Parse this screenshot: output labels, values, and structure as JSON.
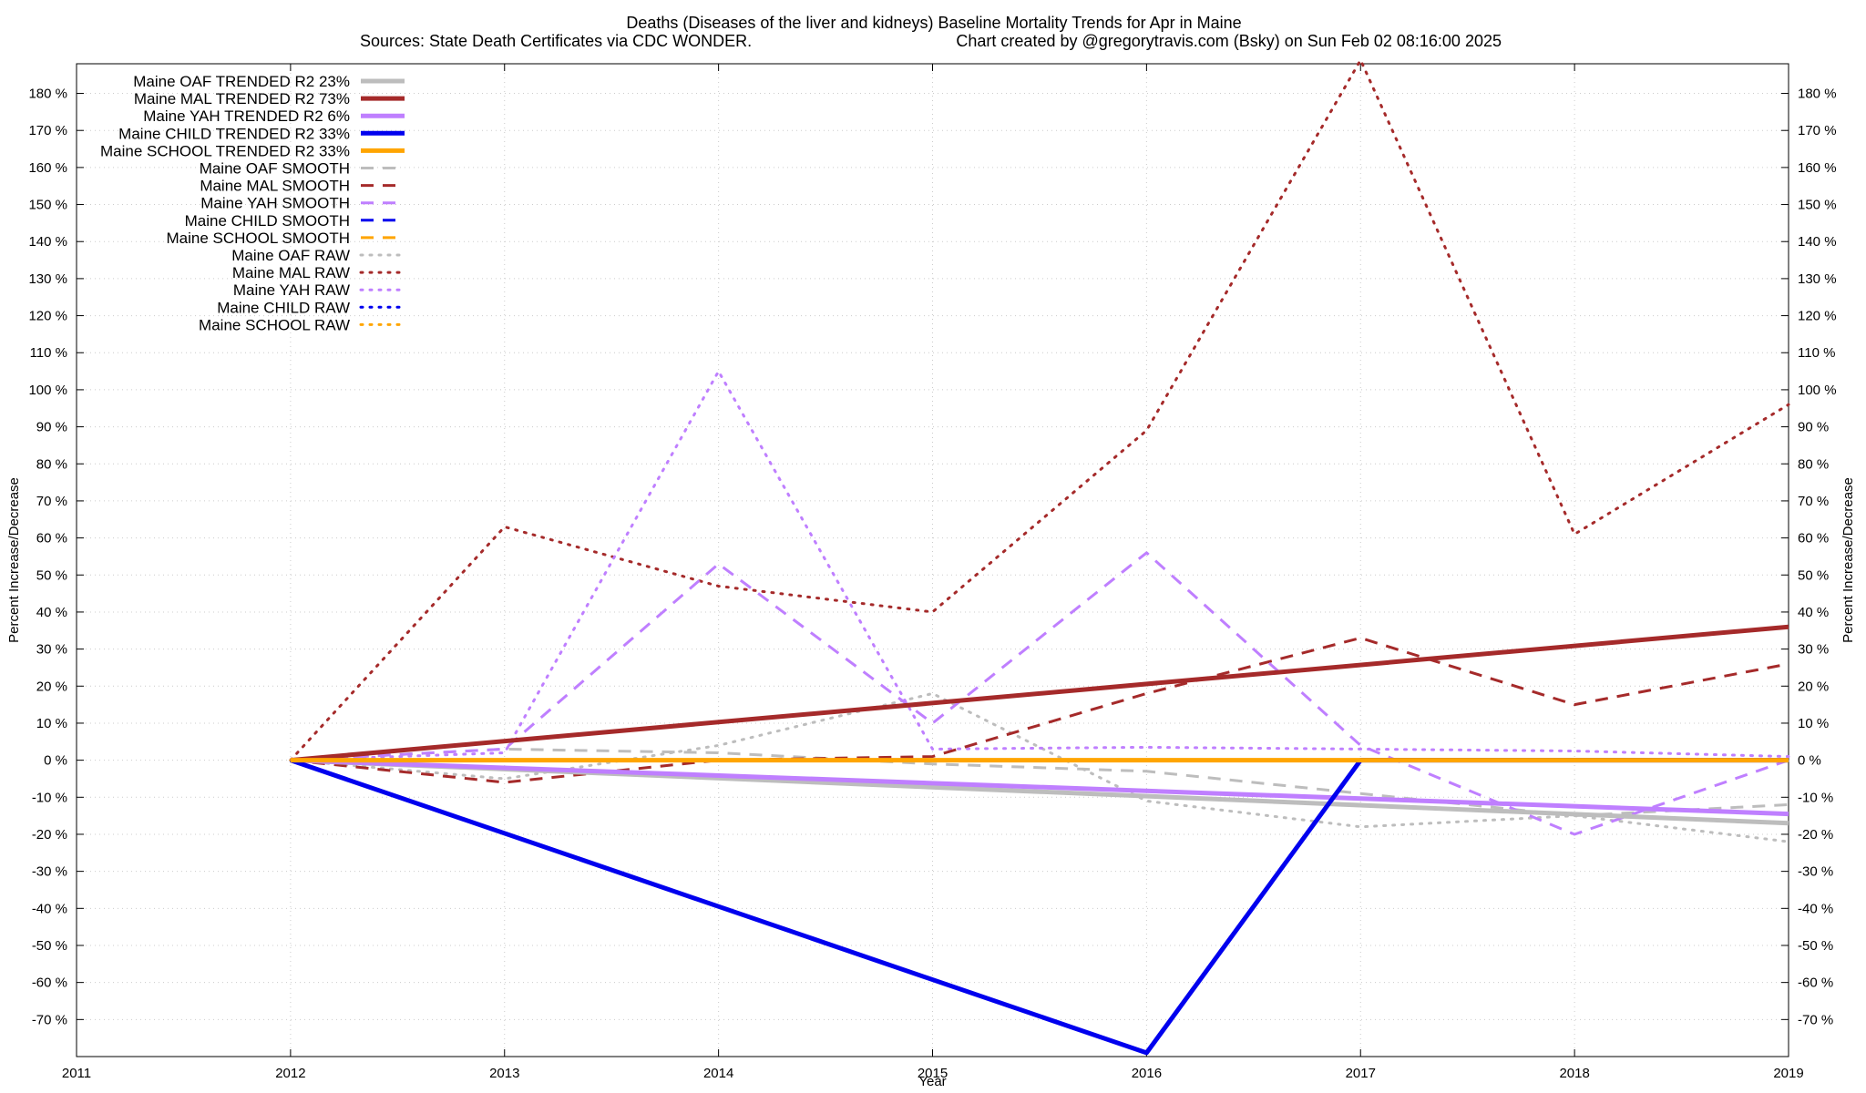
{
  "chart_data": {
    "type": "line",
    "title_line1": "Deaths (Diseases of the liver and kidneys)  Baseline Mortality Trends for Apr in Maine",
    "title_line2_left": "Sources: State Death Certificates via CDC WONDER.",
    "title_line2_right": "Chart created by @gregorytravis.com (Bsky) on Sun Feb 02 08:16:00 2025",
    "xlabel": "Year",
    "ylabel": "Percent Increase/Decrease",
    "xlim": [
      2011,
      2019
    ],
    "ylim": [
      -80,
      188
    ],
    "x_ticks": [
      2011,
      2012,
      2013,
      2014,
      2015,
      2016,
      2017,
      2018,
      2019
    ],
    "y_ticks": [
      -70,
      -60,
      -50,
      -40,
      -30,
      -20,
      -10,
      0,
      10,
      20,
      30,
      40,
      50,
      60,
      70,
      80,
      90,
      100,
      110,
      120,
      130,
      140,
      150,
      160,
      170,
      180
    ],
    "y_tick_suffix": " %",
    "grid": true,
    "legend_position": "top-left",
    "series": [
      {
        "name": "Maine OAF TRENDED R2  23%",
        "style": "solid",
        "color": "#bdbdbd",
        "width": 5,
        "x": [
          2012,
          2019
        ],
        "y": [
          0,
          -17
        ]
      },
      {
        "name": "Maine MAL TRENDED R2  73%",
        "style": "solid",
        "color": "#a52a2a",
        "width": 5,
        "x": [
          2012,
          2019
        ],
        "y": [
          0,
          36
        ]
      },
      {
        "name": "Maine YAH TRENDED R2   6%",
        "style": "solid",
        "color": "#bf7fff",
        "width": 5,
        "x": [
          2012,
          2019
        ],
        "y": [
          0,
          -14.5
        ]
      },
      {
        "name": "Maine CHILD TRENDED R2  33%",
        "style": "solid",
        "color": "#0000ee",
        "width": 5,
        "x": [
          2012,
          2016,
          2017,
          2019
        ],
        "y": [
          0,
          -79,
          0,
          0
        ]
      },
      {
        "name": "Maine SCHOOL TRENDED R2  33%",
        "style": "solid",
        "color": "#ffa500",
        "width": 5,
        "x": [
          2012,
          2019
        ],
        "y": [
          0,
          0
        ]
      },
      {
        "name": "Maine OAF SMOOTH",
        "style": "dashed",
        "color": "#bdbdbd",
        "width": 3,
        "x": [
          2012,
          2013,
          2014,
          2015,
          2016,
          2017,
          2018,
          2019
        ],
        "y": [
          0,
          3,
          2,
          -1,
          -3,
          -9,
          -15,
          -12
        ]
      },
      {
        "name": "Maine MAL SMOOTH",
        "style": "dashed",
        "color": "#a52a2a",
        "width": 3,
        "x": [
          2012,
          2013,
          2014,
          2015,
          2016,
          2017,
          2018,
          2019
        ],
        "y": [
          0,
          -6,
          0,
          1,
          18,
          33,
          15,
          26
        ]
      },
      {
        "name": "Maine YAH SMOOTH",
        "style": "dashed",
        "color": "#bf7fff",
        "width": 3,
        "x": [
          2012,
          2013,
          2014,
          2015,
          2016,
          2017,
          2018,
          2019
        ],
        "y": [
          0,
          3,
          53,
          10,
          56,
          4,
          -20,
          0
        ]
      },
      {
        "name": "Maine CHILD SMOOTH",
        "style": "dashed",
        "color": "#0000ee",
        "width": 3,
        "x": [
          2012,
          2019
        ],
        "y": [
          0,
          0
        ]
      },
      {
        "name": "Maine SCHOOL SMOOTH",
        "style": "dashed",
        "color": "#ffa500",
        "width": 3,
        "x": [
          2012,
          2019
        ],
        "y": [
          0,
          0
        ]
      },
      {
        "name": "Maine OAF RAW",
        "style": "dotted",
        "color": "#bdbdbd",
        "width": 3,
        "x": [
          2012,
          2013,
          2014,
          2015,
          2016,
          2017,
          2018,
          2019
        ],
        "y": [
          0,
          -5,
          4,
          18,
          -11,
          -18,
          -15,
          -22
        ]
      },
      {
        "name": "Maine MAL RAW",
        "style": "dotted",
        "color": "#a52a2a",
        "width": 3,
        "x": [
          2012,
          2013,
          2014,
          2015,
          2016,
          2017,
          2018,
          2019
        ],
        "y": [
          0,
          63,
          47,
          40,
          89,
          189,
          61,
          96
        ]
      },
      {
        "name": "Maine YAH RAW",
        "style": "dotted",
        "color": "#bf7fff",
        "width": 3,
        "x": [
          2012,
          2013,
          2014,
          2015,
          2016,
          2017,
          2018,
          2019
        ],
        "y": [
          0,
          2,
          105,
          3,
          3.5,
          3,
          2.5,
          1
        ]
      },
      {
        "name": "Maine CHILD RAW",
        "style": "dotted",
        "color": "#0000ee",
        "width": 3,
        "x": [
          2012,
          2019
        ],
        "y": [
          0,
          0
        ]
      },
      {
        "name": "Maine SCHOOL RAW",
        "style": "dotted",
        "color": "#ffa500",
        "width": 3,
        "x": [
          2012,
          2019
        ],
        "y": [
          0,
          0
        ]
      }
    ]
  }
}
